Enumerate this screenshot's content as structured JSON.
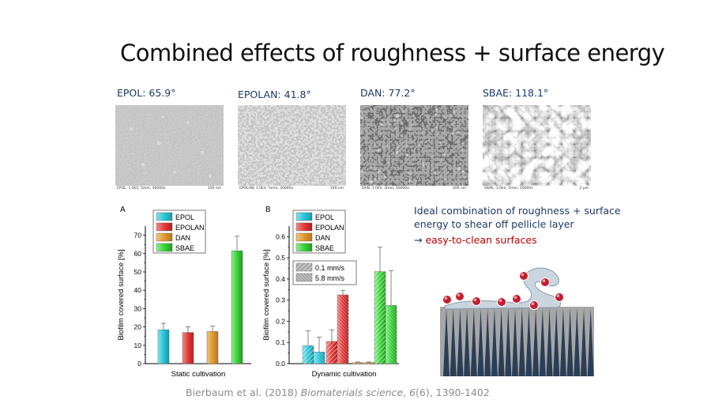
{
  "slide": {
    "title": "Combined effects of roughness + surface energy",
    "images": [
      {
        "caption": "EPOL: 65.9°",
        "footer_left": "EPOL, 1.0kV, 5mm, 30000x",
        "footer_right": "100 nm"
      },
      {
        "caption": "EPOLAN: 41.8°",
        "footer_left": "EPOLAN, 1.0kV, 5mm, 30000x",
        "footer_right": "100 nm"
      },
      {
        "caption": "DAN: 77.2°",
        "footer_left": "DAN, 1.0kV, 3mm, 30000x",
        "footer_right": "100 nm"
      },
      {
        "caption": "SBAE: 118.1°",
        "footer_left": "SBAE, 1.0kV, 5mm, 10000x",
        "footer_right": "2 µm"
      }
    ],
    "text_line1": "Ideal combination of roughness + surface energy to shear off pellicle layer",
    "arrow_glyph": "→",
    "text_line2": "easy-to-clean surfaces",
    "citation_authors": "Bierbaum et al. (2018) ",
    "citation_journal": "Biomaterials science",
    "citation_sep": ", ",
    "citation_volume": "6",
    "citation_rest": "(6), 1390-1402"
  },
  "chart_data": [
    {
      "type": "bar",
      "panel_label": "A",
      "categories": [
        "EPOL",
        "EPOLAN",
        "DAN",
        "SBAE"
      ],
      "values": [
        18.5,
        17,
        17.5,
        61.5
      ],
      "errors": [
        3.5,
        3,
        3,
        8
      ],
      "ylabel": "Biofilm covered surface [%]",
      "xlabel": "Static cultivation",
      "ylim": [
        0,
        75
      ],
      "yticks": [
        0,
        10,
        20,
        30,
        40,
        50,
        60,
        70
      ],
      "ytick_labels": [
        "0",
        "10",
        "20",
        "30",
        "40",
        "50",
        "60",
        "70"
      ],
      "legend": [
        "EPOL",
        "EPOLAN",
        "DAN",
        "SBAE"
      ],
      "colors": [
        "#2ec4d6",
        "#e23b3b",
        "#e09a30",
        "#3cd23c"
      ],
      "grid": false,
      "legend_placement": "top-left"
    },
    {
      "type": "bar",
      "panel_label": "B",
      "categories": [
        "EPOL",
        "EPOLAN",
        "DAN",
        "SBAE"
      ],
      "series": [
        {
          "name": "0.1 mm/s",
          "values": [
            0.085,
            0.105,
            0.005,
            0.435
          ],
          "errors": [
            0.07,
            0.055,
            0.003,
            0.115
          ]
        },
        {
          "name": "5.8 mm/s",
          "values": [
            0.055,
            0.325,
            0.005,
            0.275
          ],
          "errors": [
            0.07,
            0.02,
            0.003,
            0.165
          ]
        }
      ],
      "ylabel": "Biofilm covered surface [%]",
      "xlabel": "Dynamic cultivation",
      "ylim": [
        0,
        0.65
      ],
      "yticks": [
        0,
        0.1,
        0.2,
        0.3,
        0.4,
        0.5,
        0.6
      ],
      "ytick_labels": [
        "0.0",
        "0.1",
        "0.2",
        "0.3",
        "0.4",
        "0.5",
        "0.6"
      ],
      "legend": [
        "EPOL",
        "EPOLAN",
        "DAN",
        "SBAE"
      ],
      "legend2": [
        "0.1 mm/s",
        "5.8 mm/s"
      ],
      "colors": [
        "#2ec4d6",
        "#e23b3b",
        "#e09a30",
        "#3cd23c"
      ],
      "grid": false,
      "legend_placement": "top-left"
    }
  ],
  "colors": {
    "title_text": "#111111",
    "caption_text": "#1f3864",
    "highlight": "#c00000",
    "citation": "#8c8c8c",
    "substrate": "#a0a0a0",
    "spikes": "#2a3e56",
    "bacteria": "#c02030",
    "pellicle": "#c0cdd8"
  }
}
